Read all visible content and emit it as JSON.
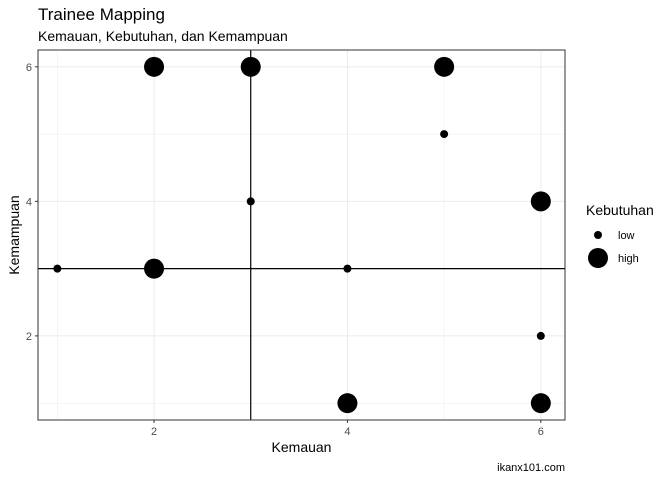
{
  "chart_data": {
    "type": "scatter",
    "title": "Trainee Mapping",
    "subtitle": "Kemauan, Kebutuhan, dan Kemampuan",
    "xlabel": "Kemauan",
    "ylabel": "Kemampuan",
    "caption": "ikanx101.com",
    "x_ticks": [
      "2",
      "4",
      "6"
    ],
    "y_ticks": [
      "2",
      "4",
      "6"
    ],
    "xlim": [
      0.8,
      6.25
    ],
    "ylim": [
      0.75,
      6.25
    ],
    "grid": true,
    "reference_lines": {
      "x": 3,
      "y": 3
    },
    "legend": {
      "title": "Kebutuhan",
      "position": "right",
      "items": [
        {
          "label": "low",
          "size": "low"
        },
        {
          "label": "high",
          "size": "high"
        }
      ]
    },
    "points": [
      {
        "x": 2,
        "y": 6,
        "size": "high"
      },
      {
        "x": 3,
        "y": 6,
        "size": "high"
      },
      {
        "x": 5,
        "y": 6,
        "size": "high"
      },
      {
        "x": 5,
        "y": 5,
        "size": "low"
      },
      {
        "x": 3,
        "y": 4,
        "size": "low"
      },
      {
        "x": 6,
        "y": 4,
        "size": "high"
      },
      {
        "x": 1,
        "y": 3,
        "size": "low"
      },
      {
        "x": 2,
        "y": 3,
        "size": "high"
      },
      {
        "x": 4,
        "y": 3,
        "size": "low"
      },
      {
        "x": 6,
        "y": 2,
        "size": "low"
      },
      {
        "x": 4,
        "y": 1,
        "size": "high"
      },
      {
        "x": 6,
        "y": 1,
        "size": "high"
      }
    ],
    "colors": {
      "point": "#000000",
      "grid": "#ebebeb",
      "panel_border": "#333333",
      "reference_line": "#000000"
    }
  }
}
